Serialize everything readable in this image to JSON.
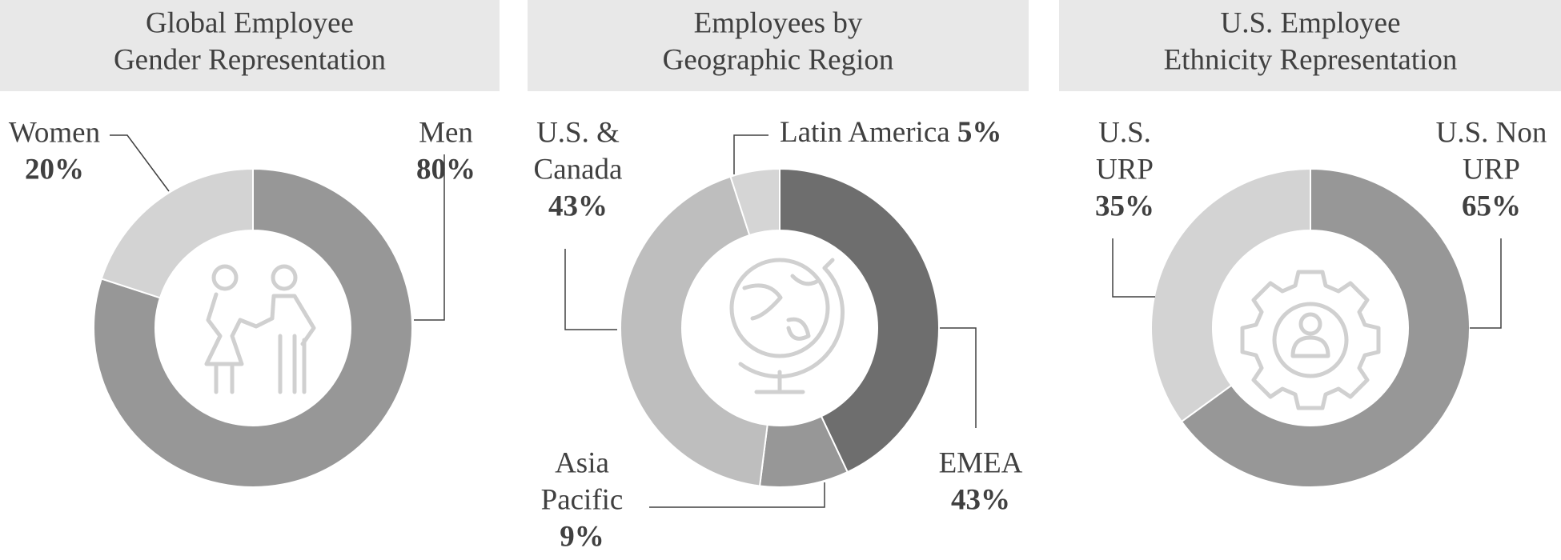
{
  "chart_data": [
    {
      "type": "donut",
      "title": [
        "Global Employee",
        "Gender Representation"
      ],
      "categories": [
        [
          "Men"
        ],
        [
          "Women"
        ]
      ],
      "values": [
        80,
        20
      ],
      "value_labels": [
        "80%",
        "20%"
      ],
      "colors": [
        "#979797",
        "#d3d3d3"
      ]
    },
    {
      "type": "donut",
      "title": [
        "Employees by",
        "Geographic Region"
      ],
      "categories": [
        [
          "EMEA"
        ],
        [
          "Asia",
          "Pacific"
        ],
        [
          "U.S. &",
          "Canada"
        ],
        [
          "Latin America"
        ]
      ],
      "values": [
        43,
        9,
        43,
        5
      ],
      "value_labels": [
        "43%",
        "9%",
        "43%",
        "5%"
      ],
      "colors": [
        "#6e6e6e",
        "#979797",
        "#bebebe",
        "#d5d5d5"
      ]
    },
    {
      "type": "donut",
      "title": [
        "U.S. Employee",
        "Ethnicity Representation"
      ],
      "categories": [
        [
          "U.S. Non",
          "URP"
        ],
        [
          "U.S.",
          "URP"
        ]
      ],
      "values": [
        65,
        35
      ],
      "value_labels": [
        "65%",
        "35%"
      ],
      "colors": [
        "#979797",
        "#d3d3d3"
      ]
    }
  ]
}
